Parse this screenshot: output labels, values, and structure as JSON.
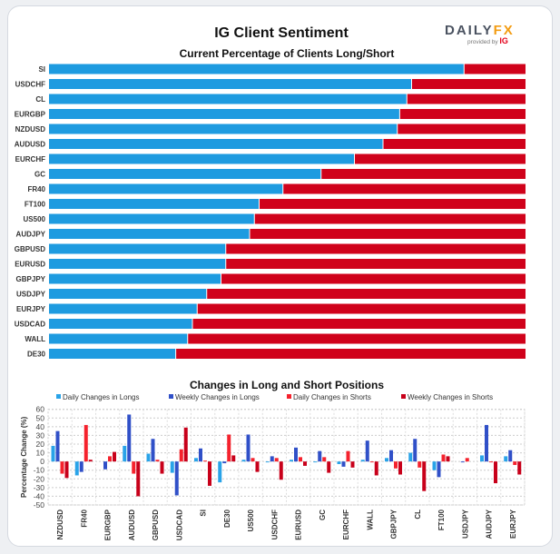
{
  "header": {
    "title": "IG Client Sentiment",
    "logo_text": "DAILYFX",
    "logo_sub": "provided by IG"
  },
  "colors": {
    "long": "#1e9be0",
    "short": "#d0021b",
    "daily_longs": "#29a3e8",
    "weekly_longs": "#3050c8",
    "daily_shorts": "#f5222d",
    "weekly_shorts": "#c8001a"
  },
  "chart_data": [
    {
      "type": "bar",
      "orientation": "horizontal",
      "stacked": true,
      "title": "Current Percentage of Clients Long/Short",
      "categories": [
        "SI",
        "USDCHF",
        "CL",
        "EURGBP",
        "NZDUSD",
        "AUDUSD",
        "EURCHF",
        "GC",
        "FR40",
        "FT100",
        "US500",
        "AUDJPY",
        "GBPUSD",
        "EURUSD",
        "GBPJPY",
        "USDJPY",
        "EURJPY",
        "USDCAD",
        "WALL",
        "DE30"
      ],
      "series": [
        {
          "values": [
            87,
            76,
            75,
            73.5,
            73,
            70,
            64,
            57,
            49,
            44,
            43,
            42,
            37,
            37,
            36,
            33,
            31,
            30,
            29,
            26.5
          ]
        }
      ],
      "xlim": [
        0,
        100
      ]
    },
    {
      "type": "bar",
      "title": "Changes in Long and Short Positions",
      "ylabel": "Percentage Change (%)",
      "ylim": [
        -50,
        60
      ],
      "yticks": [
        60,
        50,
        40,
        30,
        20,
        10,
        0,
        -10,
        -20,
        -30,
        -40,
        -50
      ],
      "grid": true,
      "legend": "top",
      "categories": [
        "NZDUSD",
        "FR40",
        "EURGBP",
        "AUDUSD",
        "GBPUSD",
        "USDCAD",
        "SI",
        "DE30",
        "US500",
        "USDCHF",
        "EURUSD",
        "GC",
        "EURCHF",
        "WALL",
        "GBPJPY",
        "CL",
        "FT100",
        "USDJPY",
        "AUDJPY",
        "EURJPY"
      ],
      "series": [
        {
          "name": "Daily Changes in Longs",
          "values": [
            18,
            -16,
            0,
            18,
            9,
            -13,
            4,
            -24,
            2,
            -1,
            2,
            -1,
            -3,
            2,
            4,
            10,
            -10,
            0,
            7,
            6
          ]
        },
        {
          "name": "Weekly Changes in Longs",
          "values": [
            35,
            -12,
            -9,
            54,
            26,
            -39,
            15,
            -2,
            31,
            6,
            16,
            12,
            -6,
            24,
            13,
            26,
            -18,
            -1,
            42,
            13
          ]
        },
        {
          "name": "Daily Changes in Shorts",
          "values": [
            -14,
            42,
            6,
            -14,
            2,
            14,
            1,
            31,
            4,
            4,
            5,
            5,
            12,
            -1,
            -8,
            -7,
            8,
            4,
            -1,
            -4
          ]
        },
        {
          "name": "Weekly Changes in Shorts",
          "values": [
            -19,
            2,
            11,
            -40,
            -14,
            39,
            -28,
            7,
            -12,
            -21,
            -5,
            -13,
            -7,
            -16,
            -15,
            -34,
            6,
            0,
            -25,
            -15
          ]
        }
      ]
    }
  ]
}
